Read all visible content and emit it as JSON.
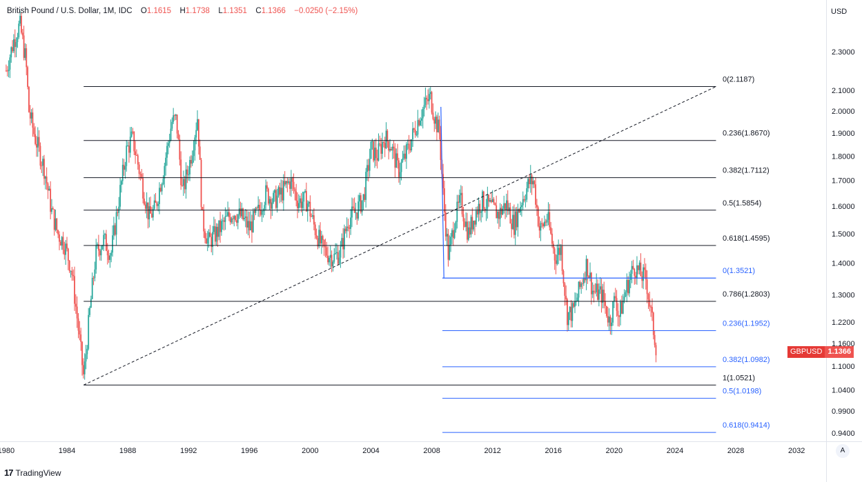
{
  "header": {
    "symbol": "British Pound / U.S. Dollar, 1M, IDC",
    "o_label": "O",
    "o_value": "1.1615",
    "h_label": "H",
    "h_value": "1.1738",
    "l_label": "L",
    "l_value": "1.1351",
    "c_label": "C",
    "c_value": "1.1366",
    "change": "−0.0250 (−2.15%)"
  },
  "axis": {
    "currency": "USD"
  },
  "price_tag": {
    "symbol": "GBPUSD",
    "value": "1.1366"
  },
  "scale_button": "A",
  "branding": {
    "name": "TradingView"
  },
  "colors": {
    "up": "#26a69a",
    "down": "#ef5350",
    "fib_black": "#131722",
    "fib_blue": "#2962ff",
    "price_tag": "#ef5350"
  },
  "chart_data": {
    "type": "candlestick",
    "title": "British Pound / U.S. Dollar, 1M, IDC",
    "y_scale": "log",
    "ylim": [
      0.9,
      2.6
    ],
    "xlim": [
      1980,
      2034.5
    ],
    "y_ticks": [
      "2.3000",
      "2.1000",
      "2.0000",
      "1.9000",
      "1.8000",
      "1.7000",
      "1.6000",
      "1.5000",
      "1.4000",
      "1.3000",
      "1.2200",
      "1.1600",
      "1.1000",
      "1.0400",
      "0.9900",
      "0.9400"
    ],
    "x_ticks": [
      "1980",
      "1984",
      "1988",
      "1992",
      "1996",
      "2000",
      "2004",
      "2008",
      "2012",
      "2016",
      "2020",
      "2024",
      "2028",
      "2032"
    ],
    "x_tick_values": [
      1980,
      1984,
      1988,
      1992,
      1996,
      2000,
      2004,
      2008,
      2012,
      2016,
      2020,
      2024,
      2028,
      2032
    ],
    "y_tick_values": [
      2.3,
      2.1,
      2.0,
      1.9,
      1.8,
      1.7,
      1.6,
      1.5,
      1.4,
      1.3,
      1.22,
      1.16,
      1.1,
      1.04,
      0.99,
      0.94
    ],
    "price_path": [
      [
        1980.0,
        2.2
      ],
      [
        1980.5,
        2.36
      ],
      [
        1980.9,
        2.45
      ],
      [
        1981.3,
        2.25
      ],
      [
        1981.5,
        2.0
      ],
      [
        1981.9,
        1.88
      ],
      [
        1982.5,
        1.75
      ],
      [
        1983.0,
        1.58
      ],
      [
        1983.4,
        1.5
      ],
      [
        1983.8,
        1.47
      ],
      [
        1984.3,
        1.38
      ],
      [
        1984.7,
        1.22
      ],
      [
        1985.1,
        1.07
      ],
      [
        1985.5,
        1.25
      ],
      [
        1985.9,
        1.43
      ],
      [
        1986.4,
        1.48
      ],
      [
        1986.9,
        1.43
      ],
      [
        1987.4,
        1.62
      ],
      [
        1987.9,
        1.82
      ],
      [
        1988.3,
        1.88
      ],
      [
        1988.9,
        1.7
      ],
      [
        1989.4,
        1.56
      ],
      [
        1989.8,
        1.59
      ],
      [
        1990.4,
        1.76
      ],
      [
        1990.9,
        1.95
      ],
      [
        1991.2,
        1.96
      ],
      [
        1991.6,
        1.65
      ],
      [
        1992.1,
        1.78
      ],
      [
        1992.6,
        1.98
      ],
      [
        1992.9,
        1.55
      ],
      [
        1993.3,
        1.47
      ],
      [
        1993.8,
        1.5
      ],
      [
        1994.5,
        1.55
      ],
      [
        1994.9,
        1.58
      ],
      [
        1995.5,
        1.56
      ],
      [
        1996.0,
        1.52
      ],
      [
        1996.6,
        1.58
      ],
      [
        1997.1,
        1.65
      ],
      [
        1997.6,
        1.62
      ],
      [
        1998.1,
        1.65
      ],
      [
        1998.7,
        1.7
      ],
      [
        1999.2,
        1.62
      ],
      [
        1999.8,
        1.62
      ],
      [
        2000.3,
        1.52
      ],
      [
        2000.8,
        1.45
      ],
      [
        2001.2,
        1.43
      ],
      [
        2001.6,
        1.42
      ],
      [
        2002.0,
        1.44
      ],
      [
        2002.5,
        1.55
      ],
      [
        2003.0,
        1.58
      ],
      [
        2003.5,
        1.63
      ],
      [
        2004.0,
        1.83
      ],
      [
        2004.4,
        1.8
      ],
      [
        2004.9,
        1.88
      ],
      [
        2005.3,
        1.85
      ],
      [
        2005.8,
        1.74
      ],
      [
        2006.2,
        1.79
      ],
      [
        2006.7,
        1.88
      ],
      [
        2007.2,
        1.98
      ],
      [
        2007.5,
        2.02
      ],
      [
        2007.9,
        2.07
      ],
      [
        2008.2,
        1.97
      ],
      [
        2008.5,
        1.9
      ],
      [
        2008.8,
        1.6
      ],
      [
        2009.1,
        1.42
      ],
      [
        2009.5,
        1.55
      ],
      [
        2009.9,
        1.62
      ],
      [
        2010.4,
        1.5
      ],
      [
        2010.9,
        1.58
      ],
      [
        2011.3,
        1.62
      ],
      [
        2011.8,
        1.6
      ],
      [
        2012.4,
        1.57
      ],
      [
        2012.9,
        1.61
      ],
      [
        2013.4,
        1.53
      ],
      [
        2013.9,
        1.62
      ],
      [
        2014.4,
        1.69
      ],
      [
        2014.7,
        1.7
      ],
      [
        2015.1,
        1.51
      ],
      [
        2015.6,
        1.56
      ],
      [
        2016.1,
        1.42
      ],
      [
        2016.5,
        1.45
      ],
      [
        2016.9,
        1.24
      ],
      [
        2017.3,
        1.25
      ],
      [
        2017.8,
        1.33
      ],
      [
        2018.2,
        1.4
      ],
      [
        2018.6,
        1.31
      ],
      [
        2019.2,
        1.3
      ],
      [
        2019.7,
        1.22
      ],
      [
        2020.1,
        1.3
      ],
      [
        2020.3,
        1.23
      ],
      [
        2020.8,
        1.32
      ],
      [
        2021.3,
        1.39
      ],
      [
        2021.8,
        1.36
      ],
      [
        2022.1,
        1.35
      ],
      [
        2022.5,
        1.22
      ],
      [
        2022.8,
        1.14
      ]
    ],
    "trend_line": {
      "from": [
        1985.1,
        1.0521
      ],
      "to": [
        2026.7,
        2.1187
      ],
      "style": "dashed"
    },
    "fib_retracement_1": {
      "x_range": [
        1985.1,
        2026.7
      ],
      "levels": [
        {
          "label": "0(2.1187)",
          "value": 2.1187
        },
        {
          "label": "0.236(1.8670)",
          "value": 1.867
        },
        {
          "label": "0.382(1.7112)",
          "value": 1.7112
        },
        {
          "label": "0.5(1.5854)",
          "value": 1.5854
        },
        {
          "label": "0.618(1.4595)",
          "value": 1.4595
        },
        {
          "label": "0.786(1.2803)",
          "value": 1.2803
        },
        {
          "label": "1(1.0521)",
          "value": 1.0521
        }
      ]
    },
    "fib_retracement_2": {
      "x_range": [
        2008.7,
        2026.7
      ],
      "anchor_line": {
        "from": [
          2008.6,
          2.02
        ],
        "to": [
          2008.8,
          1.3521
        ]
      },
      "levels": [
        {
          "label": "0(1.3521)",
          "value": 1.3521
        },
        {
          "label": "0.236(1.1952)",
          "value": 1.1952
        },
        {
          "label": "0.382(1.0982)",
          "value": 1.0982
        },
        {
          "label": "0.5(1.0198)",
          "value": 1.0198
        },
        {
          "label": "0.618(0.9414)",
          "value": 0.9414
        }
      ]
    },
    "last_price": 1.1366
  }
}
